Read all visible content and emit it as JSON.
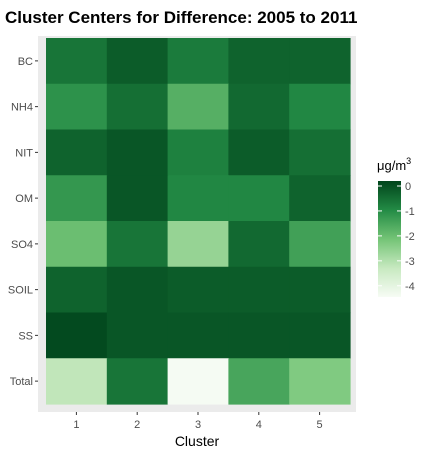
{
  "chart_data": {
    "type": "heatmap",
    "title": "Cluster Centers for Difference: 2005 to 2011",
    "xlabel": "Cluster",
    "ylabel": "",
    "x_categories": [
      "1",
      "2",
      "3",
      "4",
      "5"
    ],
    "y_categories": [
      "BC",
      "NH4",
      "NIT",
      "OM",
      "SO4",
      "SOIL",
      "SS",
      "Total"
    ],
    "values": [
      [
        -0.6,
        -0.2,
        -0.7,
        -0.3,
        -0.3
      ],
      [
        -1.1,
        -0.5,
        -1.7,
        -0.4,
        -0.9
      ],
      [
        -0.3,
        -0.1,
        -0.8,
        -0.2,
        -0.5
      ],
      [
        -1.2,
        -0.1,
        -0.9,
        -0.9,
        -0.3
      ],
      [
        -2.0,
        -0.6,
        -2.6,
        -0.4,
        -1.4
      ],
      [
        -0.3,
        -0.1,
        -0.2,
        -0.2,
        -0.2
      ],
      [
        0.1,
        -0.1,
        -0.1,
        -0.1,
        -0.1
      ],
      [
        -3.2,
        -0.6,
        -4.4,
        -1.5,
        -2.3
      ]
    ],
    "colorbar": {
      "title": "μg/m",
      "title_superscript": "3",
      "ticks": [
        "0",
        "-1",
        "-2",
        "-3",
        "-4"
      ],
      "tick_values": [
        0,
        -1,
        -2,
        -3,
        -4
      ],
      "range": [
        -4.45,
        0.2
      ],
      "colors": [
        "#f7fcf5",
        "#c7e9c0",
        "#74c476",
        "#238b45",
        "#00441b"
      ]
    },
    "grid": false,
    "legend_position": "right",
    "panel_background": "#ebebeb"
  }
}
